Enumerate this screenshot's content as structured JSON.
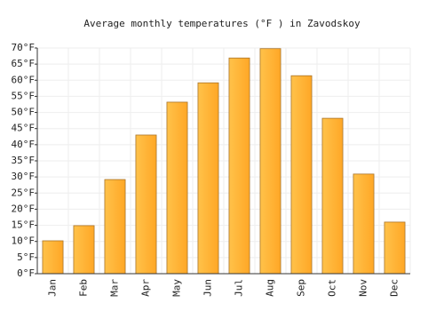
{
  "chart_data": {
    "type": "bar",
    "title": "Average monthly temperatures (°F ) in Zavodskoy",
    "categories": [
      "Jan",
      "Feb",
      "Mar",
      "Apr",
      "May",
      "Jun",
      "Jul",
      "Aug",
      "Sep",
      "Oct",
      "Nov",
      "Dec"
    ],
    "values": [
      10.2,
      14.9,
      29.2,
      43,
      53.2,
      59.2,
      66.9,
      69.8,
      61.4,
      48.2,
      30.9,
      16
    ],
    "color": "#ffa726",
    "ylim": [
      0,
      70
    ],
    "yticks": [
      {
        "value": 0,
        "label": "0°F"
      },
      {
        "value": 5,
        "label": "5°F"
      },
      {
        "value": 10,
        "label": "10°F"
      },
      {
        "value": 15,
        "label": "15°F"
      },
      {
        "value": 20,
        "label": "20°F"
      },
      {
        "value": 25,
        "label": "25°F"
      },
      {
        "value": 30,
        "label": "30°F"
      },
      {
        "value": 35,
        "label": "35°F"
      },
      {
        "value": 40,
        "label": "40°F"
      },
      {
        "value": 45,
        "label": "45°F"
      },
      {
        "value": 50,
        "label": "50°F"
      },
      {
        "value": 55,
        "label": "55°F"
      },
      {
        "value": 60,
        "label": "60°F"
      },
      {
        "value": 65,
        "label": "65°F"
      },
      {
        "value": 70,
        "label": "70°F"
      }
    ],
    "grid": true
  }
}
